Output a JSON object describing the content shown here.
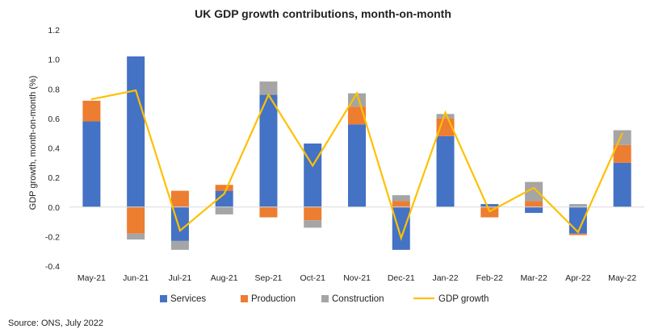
{
  "chart_data": {
    "type": "bar",
    "title": "UK GDP growth contributions, month-on-month",
    "ylabel": "GDP growth, month-on-month (%)",
    "xlabel": "",
    "ylim": [
      -0.4,
      1.2
    ],
    "yticks": [
      "1.2",
      "1.0",
      "0.8",
      "0.6",
      "0.4",
      "0.2",
      "0.0",
      "-0.2",
      "-0.4"
    ],
    "ytick_values": [
      1.2,
      1.0,
      0.8,
      0.6,
      0.4,
      0.2,
      0.0,
      -0.2,
      -0.4
    ],
    "stacked": true,
    "grid": false,
    "legend_position": "bottom",
    "categories": [
      "May-21",
      "Jun-21",
      "Jul-21",
      "Aug-21",
      "Sep-21",
      "Oct-21",
      "Nov-21",
      "Dec-21",
      "Jan-22",
      "Feb-22",
      "Mar-22",
      "Apr-22",
      "May-22"
    ],
    "series": [
      {
        "name": "Services",
        "kind": "bar",
        "color": "#4472c4",
        "values": [
          0.58,
          1.02,
          -0.23,
          0.11,
          0.76,
          0.43,
          0.56,
          -0.29,
          0.48,
          0.02,
          -0.04,
          -0.18,
          0.3
        ]
      },
      {
        "name": "Production",
        "kind": "bar",
        "color": "#ed7d31",
        "values": [
          0.14,
          -0.18,
          0.11,
          0.04,
          -0.07,
          -0.09,
          0.12,
          0.04,
          0.12,
          -0.07,
          0.04,
          -0.01,
          0.12
        ]
      },
      {
        "name": "Construction",
        "kind": "bar",
        "color": "#a5a5a5",
        "values": [
          0.0,
          -0.04,
          -0.06,
          -0.05,
          0.09,
          -0.05,
          0.09,
          0.04,
          0.03,
          0.0,
          0.13,
          0.02,
          0.1
        ]
      },
      {
        "name": "GDP growth",
        "kind": "line",
        "color": "#ffc000",
        "values": [
          0.73,
          0.79,
          -0.16,
          0.09,
          0.76,
          0.28,
          0.77,
          -0.21,
          0.64,
          -0.03,
          0.13,
          -0.17,
          0.5
        ]
      }
    ]
  },
  "source_note": "Source: ONS, July 2022"
}
